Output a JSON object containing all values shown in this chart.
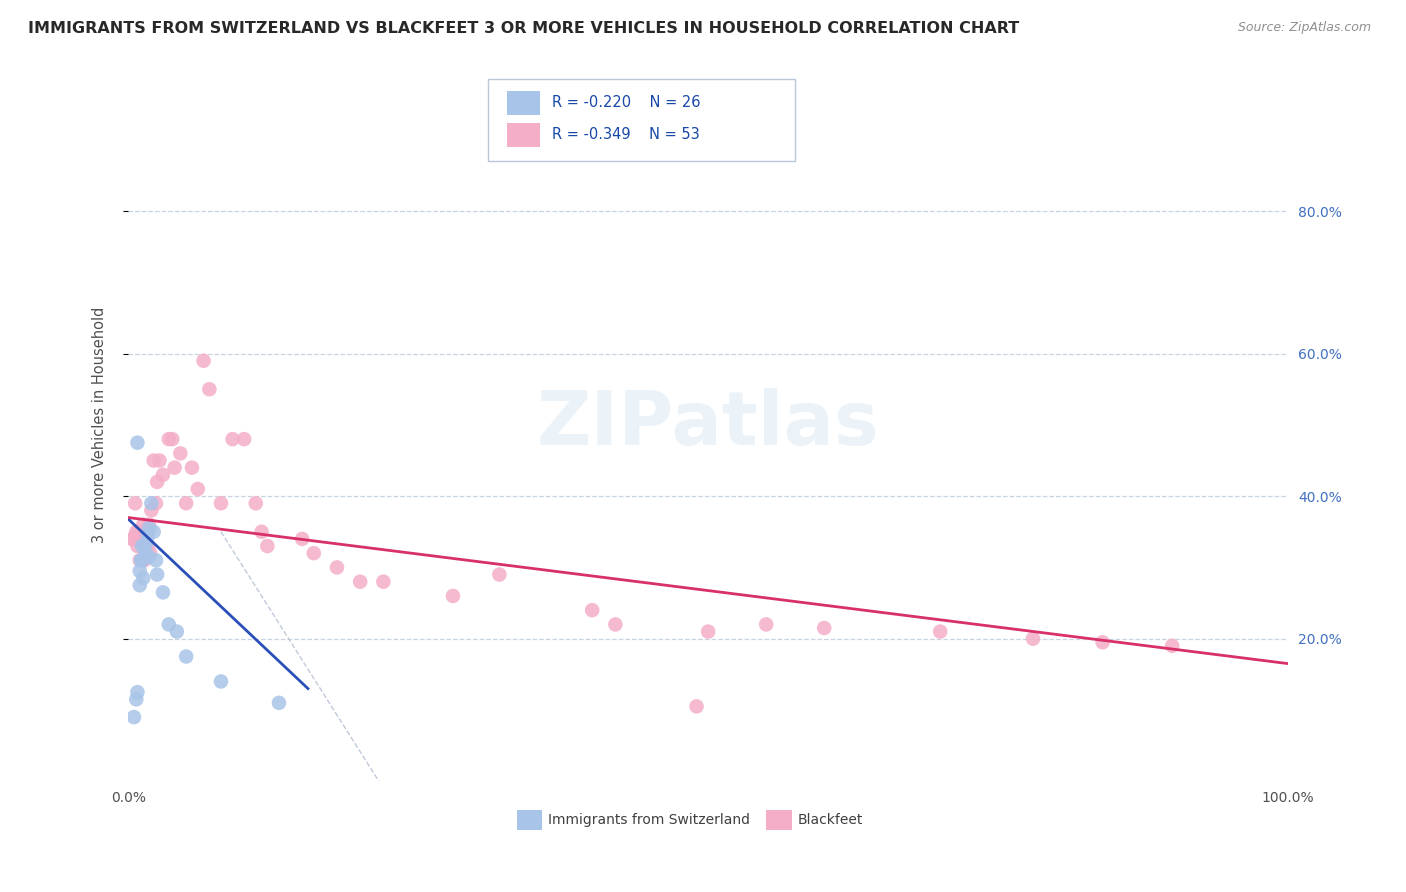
{
  "title": "IMMIGRANTS FROM SWITZERLAND VS BLACKFEET 3 OR MORE VEHICLES IN HOUSEHOLD CORRELATION CHART",
  "source": "Source: ZipAtlas.com",
  "ylabel": "3 or more Vehicles in Household",
  "R1": "-0.220",
  "N1": "26",
  "R2": "-0.349",
  "N2": "53",
  "legend_label1": "Immigrants from Switzerland",
  "legend_label2": "Blackfeet",
  "color1": "#a8c4e8",
  "color2": "#f4aec8",
  "line_color1": "#2a50b8",
  "line_color2": "#d83068",
  "bg_color": "#ffffff",
  "grid_color": "#c8d4e0",
  "watermark_text": "ZIPatlas",
  "swiss_x": [
    0.005,
    0.007,
    0.008,
    0.008,
    0.01,
    0.01,
    0.011,
    0.012,
    0.012,
    0.013,
    0.014,
    0.015,
    0.016,
    0.017,
    0.018,
    0.018,
    0.02,
    0.022,
    0.024,
    0.025,
    0.03,
    0.035,
    0.042,
    0.05,
    0.08,
    0.13
  ],
  "swiss_y": [
    0.09,
    0.115,
    0.125,
    0.475,
    0.275,
    0.295,
    0.31,
    0.33,
    0.31,
    0.285,
    0.33,
    0.32,
    0.335,
    0.345,
    0.355,
    0.315,
    0.39,
    0.35,
    0.31,
    0.29,
    0.265,
    0.22,
    0.21,
    0.175,
    0.14,
    0.11
  ],
  "blackfeet_x": [
    0.003,
    0.005,
    0.006,
    0.007,
    0.008,
    0.009,
    0.01,
    0.012,
    0.013,
    0.014,
    0.015,
    0.016,
    0.017,
    0.018,
    0.019,
    0.02,
    0.022,
    0.024,
    0.025,
    0.027,
    0.03,
    0.035,
    0.038,
    0.04,
    0.045,
    0.05,
    0.055,
    0.06,
    0.065,
    0.07,
    0.08,
    0.09,
    0.1,
    0.11,
    0.115,
    0.12,
    0.15,
    0.16,
    0.18,
    0.2,
    0.22,
    0.28,
    0.32,
    0.4,
    0.42,
    0.5,
    0.55,
    0.6,
    0.7,
    0.78,
    0.84,
    0.9,
    0.49
  ],
  "blackfeet_y": [
    0.34,
    0.34,
    0.39,
    0.35,
    0.33,
    0.35,
    0.31,
    0.33,
    0.36,
    0.31,
    0.35,
    0.35,
    0.33,
    0.36,
    0.32,
    0.38,
    0.45,
    0.39,
    0.42,
    0.45,
    0.43,
    0.48,
    0.48,
    0.44,
    0.46,
    0.39,
    0.44,
    0.41,
    0.59,
    0.55,
    0.39,
    0.48,
    0.48,
    0.39,
    0.35,
    0.33,
    0.34,
    0.32,
    0.3,
    0.28,
    0.28,
    0.26,
    0.29,
    0.24,
    0.22,
    0.21,
    0.22,
    0.215,
    0.21,
    0.2,
    0.195,
    0.19,
    0.105
  ],
  "xlim": [
    0.0,
    1.0
  ],
  "ylim": [
    0.0,
    1.0
  ],
  "xticks": [
    0.0,
    1.0
  ],
  "xtick_labels": [
    "0.0%",
    "100.0%"
  ],
  "yticks_right": [
    0.2,
    0.4,
    0.6,
    0.8
  ],
  "ytick_labels_right": [
    "20.0%",
    "40.0%",
    "60.0%",
    "80.0%"
  ],
  "right_tick_color": "#4070c0"
}
